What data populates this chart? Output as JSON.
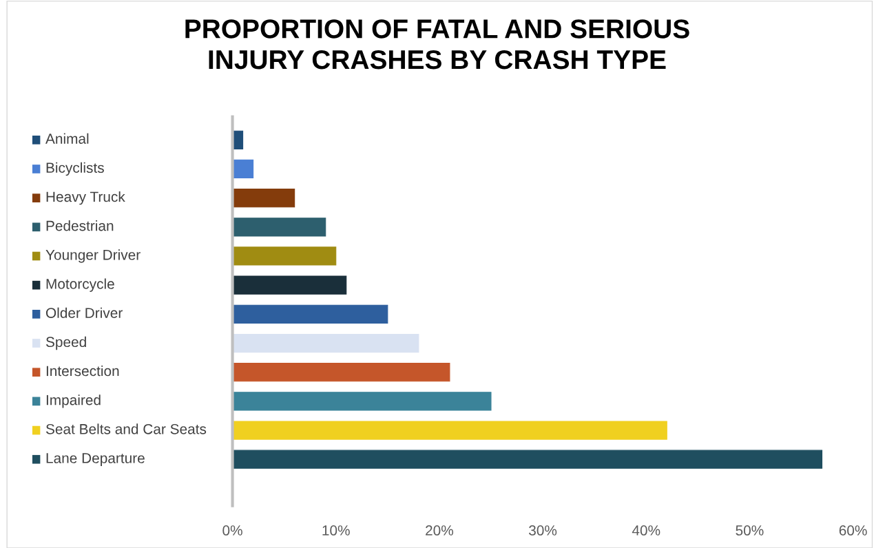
{
  "chart_data": {
    "type": "bar",
    "orientation": "horizontal",
    "title": "PROPORTION OF FATAL AND SERIOUS\nINJURY CRASHES BY CRASH TYPE",
    "categories": [
      "Animal",
      "Bicyclists",
      "Heavy Truck",
      "Pedestrian",
      "Younger Driver",
      "Motorcycle",
      "Older Driver",
      "Speed",
      "Intersection",
      "Impaired",
      "Seat Belts and Car Seats",
      "Lane Departure"
    ],
    "values": [
      1,
      2,
      6,
      9,
      10,
      11,
      15,
      18,
      21,
      25,
      42,
      57
    ],
    "colors": [
      "#1f4e79",
      "#4a7fd4",
      "#843c0c",
      "#2d5f6e",
      "#a08c12",
      "#1a2f3a",
      "#2e5f9e",
      "#d9e2f2",
      "#c5562a",
      "#3b8399",
      "#f0d020",
      "#1f4e5f"
    ],
    "xlim": [
      0,
      60
    ],
    "xticks": [
      {
        "value": 0,
        "label": "0%"
      },
      {
        "value": 10,
        "label": "10%"
      },
      {
        "value": 20,
        "label": "20%"
      },
      {
        "value": 30,
        "label": "30%"
      },
      {
        "value": 40,
        "label": "40%"
      },
      {
        "value": 50,
        "label": "50%"
      },
      {
        "value": 60,
        "label": "60%"
      }
    ],
    "grid": false
  }
}
